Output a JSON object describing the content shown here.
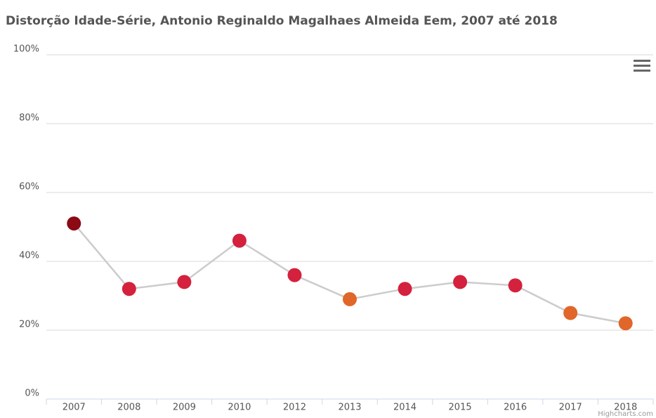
{
  "chart_data": {
    "type": "line",
    "title": "Distorção Idade-Série, Antonio Reginaldo Magalhaes Almeida Eem, 2007 até 2018",
    "categories": [
      "2007",
      "2008",
      "2009",
      "2010",
      "2012",
      "2013",
      "2014",
      "2015",
      "2016",
      "2017",
      "2018"
    ],
    "values": [
      51,
      32,
      34,
      46,
      36,
      29,
      32,
      34,
      33,
      25,
      22
    ],
    "color": "#cccccc",
    "point_colors": [
      "#8b0a14",
      "#d4213d",
      "#d4213d",
      "#d4213d",
      "#d4213d",
      "#e0662a",
      "#d4213d",
      "#d4213d",
      "#d4213d",
      "#e0662a",
      "#e0662a"
    ],
    "ylim": [
      0,
      100
    ],
    "yticks": [
      {
        "value": 0,
        "label": "0%"
      },
      {
        "value": 20,
        "label": "20%"
      },
      {
        "value": 40,
        "label": "40%"
      },
      {
        "value": 60,
        "label": "60%"
      },
      {
        "value": 80,
        "label": "80%"
      },
      {
        "value": 100,
        "label": "100%"
      }
    ],
    "grid": true,
    "credits": "Highcharts.com"
  }
}
